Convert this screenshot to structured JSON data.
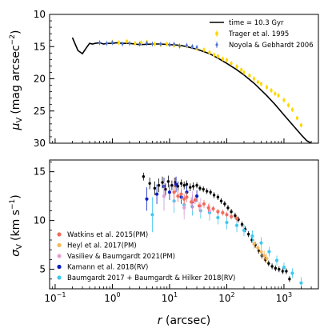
{
  "chart_data": [
    {
      "type": "scatter",
      "panel": "top",
      "ylabel": "μ_V (mag arcsec^-2)",
      "ylabel_parts": {
        "sym": "μ",
        "sub": "V",
        "unit": "(mag arcsec",
        "exp": "−2",
        "close": ")"
      },
      "x_scale": "log",
      "xlim": [
        0.08,
        4000
      ],
      "ylim": [
        30,
        10
      ],
      "y_inverted": true,
      "yticks": [
        10,
        15,
        20,
        25,
        30
      ],
      "yticklabels": [
        "10",
        "15",
        "20",
        "25",
        "30"
      ],
      "legend_position": "top-right",
      "series": [
        {
          "name": "time = 10.3 Gyr",
          "kind": "line",
          "color": "#000000",
          "x": [
            0.2,
            0.25,
            0.3,
            0.35,
            0.4,
            0.45,
            0.5,
            0.6,
            0.7,
            0.8,
            1.0,
            1.2,
            1.5,
            2,
            3,
            5,
            7,
            10,
            15,
            20,
            30,
            50,
            70,
            100,
            150,
            200,
            300,
            500,
            700,
            1000,
            1500,
            2000,
            2500,
            3000
          ],
          "y": [
            13.6,
            15.6,
            16.1,
            15.2,
            14.5,
            14.6,
            14.5,
            14.4,
            14.6,
            14.5,
            14.5,
            14.4,
            14.5,
            14.5,
            14.7,
            14.6,
            14.6,
            14.7,
            14.8,
            15.0,
            15.4,
            16.1,
            16.8,
            17.6,
            18.6,
            19.4,
            20.7,
            22.6,
            24.0,
            25.6,
            27.4,
            28.7,
            29.6,
            30.0
          ]
        },
        {
          "name": "Trager et al. 1995",
          "kind": "points",
          "color": "#ffd700",
          "x": [
            1.0,
            1.3,
            1.8,
            2.5,
            3.2,
            4.0,
            5.5,
            7.0,
            9.0,
            12,
            15,
            20,
            25,
            30,
            40,
            50,
            60,
            70,
            85,
            100,
            120,
            150,
            180,
            200,
            250,
            300,
            350,
            400,
            500,
            600,
            700,
            800,
            1000,
            1200,
            1400,
            1700,
            2000
          ],
          "y": [
            14.3,
            14.4,
            14.2,
            14.5,
            14.4,
            14.3,
            14.6,
            14.7,
            14.6,
            14.8,
            14.9,
            14.9,
            15.0,
            15.3,
            15.5,
            15.9,
            16.3,
            16.5,
            16.9,
            17.1,
            17.6,
            18.1,
            18.6,
            19.0,
            19.5,
            20.0,
            20.5,
            20.8,
            21.3,
            21.8,
            22.3,
            22.6,
            23.3,
            24.1,
            24.8,
            26.1,
            27.2
          ]
        },
        {
          "name": "Noyola & Gebhardt 2006",
          "kind": "points",
          "color": "#4a6fd6",
          "x": [
            0.6,
            0.8,
            1.0,
            1.5,
            2.0,
            3.0,
            4.0,
            5.0,
            7.0,
            10,
            12,
            15,
            20,
            25,
            30
          ],
          "y": [
            14.4,
            14.5,
            14.4,
            14.6,
            14.5,
            14.6,
            14.5,
            14.6,
            14.6,
            14.7,
            14.6,
            14.9,
            14.8,
            15.0,
            15.1
          ]
        }
      ]
    },
    {
      "type": "scatter",
      "panel": "bottom",
      "xlabel": "r (arcsec)",
      "xlabel_parts": {
        "sym": "r",
        "unit": " (arcsec)"
      },
      "ylabel": "σ_V (km s^-1)",
      "ylabel_parts": {
        "sym": "σ",
        "sub": "V",
        "unit": "(km s",
        "exp": "−1",
        "close": ")"
      },
      "x_scale": "log",
      "xlim": [
        0.08,
        4000
      ],
      "ylim": [
        3,
        16.2
      ],
      "yticks": [
        5,
        10,
        15
      ],
      "yticklabels": [
        "5",
        "10",
        "15"
      ],
      "xticks": [
        0.1,
        1,
        10,
        100,
        1000
      ],
      "xticklabels": [
        {
          "base": "10",
          "exp": "−1"
        },
        {
          "base": "10",
          "exp": "0"
        },
        {
          "base": "10",
          "exp": "1"
        },
        {
          "base": "10",
          "exp": "2"
        },
        {
          "base": "10",
          "exp": "3"
        }
      ],
      "legend_position": "bottom-left",
      "series": [
        {
          "name": "Watkins et al. 2015(PM)",
          "color": "#f26b5b",
          "x": [
            12,
            14,
            16,
            18,
            20,
            24,
            28,
            33,
            40,
            48,
            58,
            70,
            85,
            100,
            120,
            150
          ],
          "y": [
            12.9,
            12.5,
            12.7,
            12.2,
            12.4,
            11.9,
            12.1,
            11.5,
            11.7,
            11.3,
            11.2,
            10.9,
            10.8,
            10.6,
            10.4,
            10.2
          ],
          "err": [
            0.7,
            0.6,
            0.6,
            0.5,
            0.5,
            0.5,
            0.4,
            0.4,
            0.4,
            0.4,
            0.3,
            0.3,
            0.3,
            0.3,
            0.3,
            0.3
          ]
        },
        {
          "name": "Heyl et al. 2017(PM)",
          "color": "#f5b85c",
          "x": [
            300,
            350,
            400,
            450,
            500
          ],
          "y": [
            7.6,
            7.2,
            6.8,
            6.4,
            6.1
          ],
          "err": [
            0.5,
            0.5,
            0.5,
            0.5,
            0.5
          ]
        },
        {
          "name": "Vasiliev & Baumgardt 2021(PM)",
          "color": "#e3a0d8",
          "x": [
            8,
            12,
            18,
            25,
            35,
            50
          ],
          "y": [
            12.5,
            12.9,
            11.3,
            12.0,
            11.5,
            11.0
          ],
          "err": [
            1.5,
            1.5,
            1.2,
            1.0,
            0.8,
            0.8
          ]
        },
        {
          "name": "Kamann et al. 2018(RV)",
          "color": "#0a1fc2",
          "x": [
            4,
            6,
            8,
            10,
            13,
            16,
            20,
            25,
            30
          ],
          "y": [
            12.2,
            12.7,
            13.5,
            12.9,
            13.7,
            12.4,
            12.9,
            11.9,
            12.5
          ],
          "err": [
            1.2,
            1.0,
            0.9,
            0.8,
            0.8,
            0.7,
            0.7,
            0.7,
            0.6
          ]
        },
        {
          "name": "Baumgardt 2017 + Baumgardt & Hilker 2018(RV)",
          "color": "#3cc8f0",
          "x": [
            5,
            8,
            12,
            18,
            25,
            35,
            50,
            70,
            100,
            150,
            200,
            280,
            400,
            550,
            750,
            1000,
            1400,
            2000
          ],
          "y": [
            10.6,
            12.5,
            12.0,
            11.6,
            11.4,
            11.0,
            10.8,
            10.3,
            9.8,
            9.5,
            9.0,
            8.4,
            7.7,
            6.8,
            5.9,
            5.2,
            4.6,
            3.6
          ],
          "err": [
            1.8,
            1.4,
            1.2,
            1.0,
            0.9,
            0.8,
            0.8,
            0.7,
            0.7,
            0.7,
            0.6,
            0.6,
            0.6,
            0.5,
            0.5,
            0.5,
            0.5,
            0.6
          ]
        },
        {
          "name": "",
          "kind": "model",
          "color": "#000000",
          "x": [
            3.5,
            4.5,
            5.5,
            6.5,
            7.5,
            8.5,
            9.5,
            11,
            12.5,
            14,
            16,
            18,
            20,
            23,
            26,
            30,
            34,
            39,
            45,
            52,
            60,
            70,
            80,
            92,
            105,
            120,
            140,
            160,
            185,
            210,
            240,
            275,
            315,
            360,
            410,
            470,
            540,
            620,
            710,
            820,
            950,
            1100,
            1250
          ],
          "y": [
            14.5,
            13.8,
            13.3,
            13.6,
            13.9,
            13.2,
            14.0,
            13.6,
            13.9,
            13.5,
            13.8,
            13.6,
            13.7,
            13.4,
            13.5,
            13.6,
            13.3,
            13.2,
            13.0,
            12.9,
            12.6,
            12.4,
            12.0,
            11.7,
            11.3,
            10.9,
            10.5,
            10.1,
            9.6,
            9.1,
            8.6,
            8.0,
            7.5,
            6.9,
            6.4,
            6.0,
            5.6,
            5.3,
            5.1,
            5.0,
            4.8,
            4.8,
            4.0
          ],
          "err": [
            0.4,
            0.6,
            0.7,
            0.7,
            0.6,
            0.6,
            0.6,
            0.5,
            0.5,
            0.5,
            0.4,
            0.4,
            0.4,
            0.4,
            0.4,
            0.3,
            0.3,
            0.3,
            0.3,
            0.3,
            0.3,
            0.3,
            0.3,
            0.3,
            0.3,
            0.3,
            0.3,
            0.3,
            0.3,
            0.3,
            0.3,
            0.3,
            0.3,
            0.3,
            0.3,
            0.3,
            0.3,
            0.3,
            0.3,
            0.3,
            0.3,
            0.3,
            0.3
          ]
        }
      ]
    }
  ]
}
